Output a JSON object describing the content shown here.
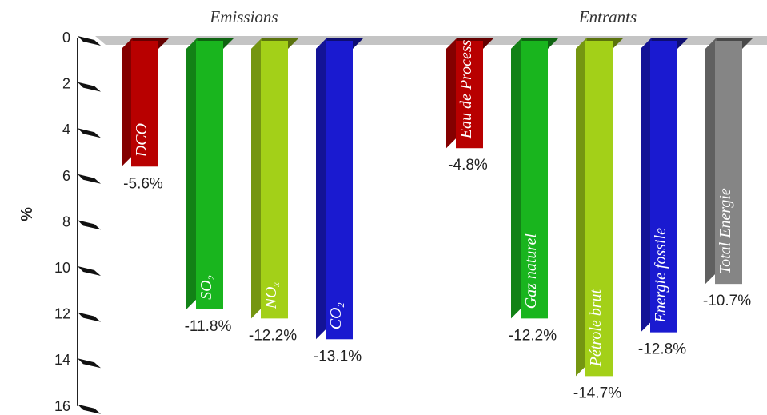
{
  "chart_data": {
    "type": "bar",
    "ylabel": "%",
    "ylim": [
      0,
      16
    ],
    "yticks": [
      "0",
      "2",
      "4",
      "6",
      "8",
      "10",
      "12",
      "14",
      "16"
    ],
    "grid": false,
    "groups": [
      {
        "name": "Emissions",
        "categories": [
          {
            "label": "DCO",
            "value": -5.6,
            "value_label": "-5.6%",
            "color": "#b80000"
          },
          {
            "label": "SO",
            "subscript": "2",
            "value": -11.8,
            "value_label": "-11.8%",
            "color": "#19b51e"
          },
          {
            "label": "NO",
            "subscript": "x",
            "value": -12.2,
            "value_label": "-12.2%",
            "color": "#a3d018"
          },
          {
            "label": "CO",
            "subscript": "2",
            "value": -13.1,
            "value_label": "-13.1%",
            "color": "#1a1ad0"
          }
        ]
      },
      {
        "name": "Entrants",
        "categories": [
          {
            "label": "Eau de Process",
            "value": -4.8,
            "value_label": "-4.8%",
            "color": "#b80000"
          },
          {
            "label": "Gaz naturel",
            "value": -12.2,
            "value_label": "-12.2%",
            "color": "#19b51e"
          },
          {
            "label": "Pétrole brut",
            "value": -14.7,
            "value_label": "-14.7%",
            "color": "#a3d018"
          },
          {
            "label": "Energie fossile",
            "value": -12.8,
            "value_label": "-12.8%",
            "color": "#1a1ad0"
          },
          {
            "label": "Total Energie",
            "value": -10.7,
            "value_label": "-10.7%",
            "color": "#858585"
          }
        ]
      }
    ]
  }
}
